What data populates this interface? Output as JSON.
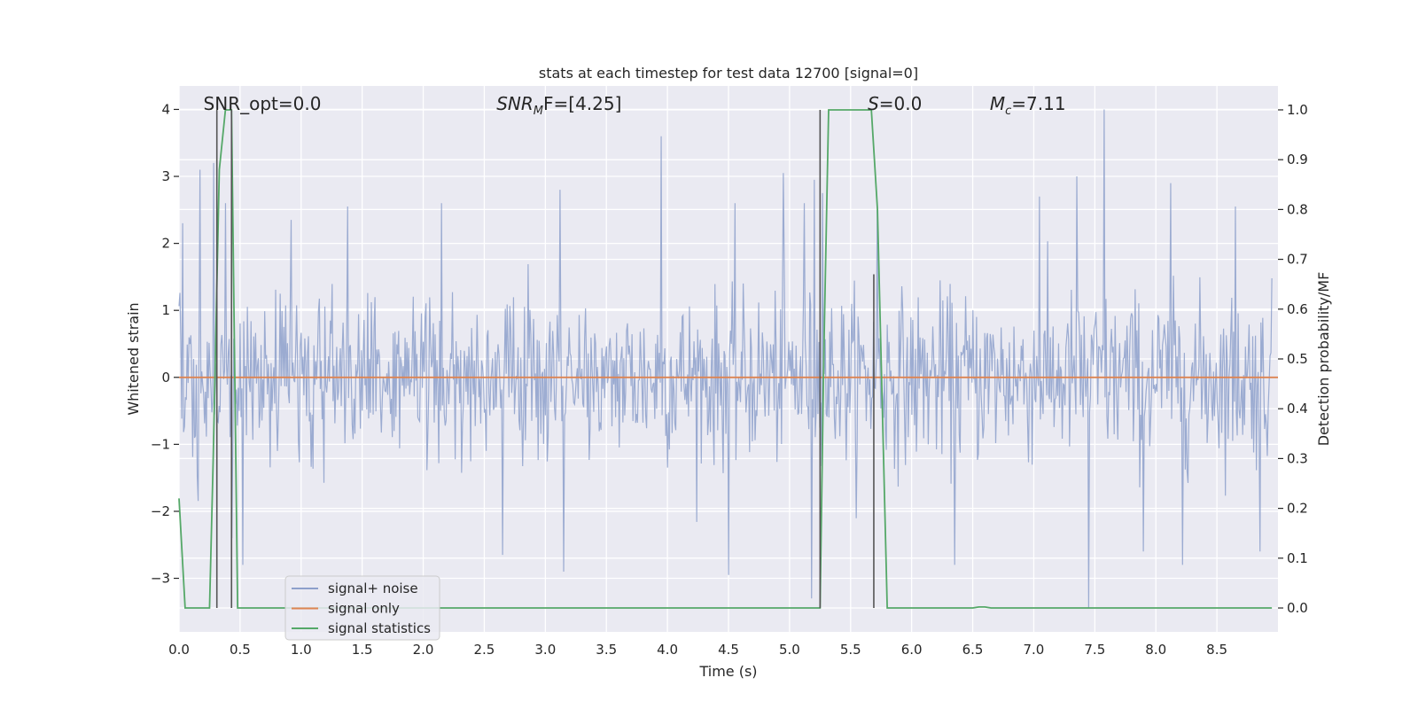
{
  "chart_data": {
    "type": "line",
    "title": "stats at each timestep for test data 12700 [signal=0]",
    "xlabel": "Time (s)",
    "ylabel": "Whitened strain",
    "ylabel_right": "Detection probability/MF",
    "xlim": [
      0.0,
      9.0
    ],
    "ylim": [
      -3.8,
      4.35
    ],
    "ylim_right": [
      -0.048,
      1.048
    ],
    "x_ticks": [
      0.0,
      0.5,
      1.0,
      1.5,
      2.0,
      2.5,
      3.0,
      3.5,
      4.0,
      4.5,
      5.0,
      5.5,
      6.0,
      6.5,
      7.0,
      7.5,
      8.0,
      8.5
    ],
    "x_tick_labels": [
      "0.0",
      "0.5",
      "1.0",
      "1.5",
      "2.0",
      "2.5",
      "3.0",
      "3.5",
      "4.0",
      "4.5",
      "5.0",
      "5.5",
      "6.0",
      "6.5",
      "7.0",
      "7.5",
      "8.0",
      "8.5"
    ],
    "y_ticks": [
      -3,
      -2,
      -1,
      0,
      1,
      2,
      3,
      4
    ],
    "y_tick_labels": [
      "−3",
      "−2",
      "−1",
      "0",
      "1",
      "2",
      "3",
      "4"
    ],
    "y_right_ticks": [
      0.0,
      0.1,
      0.2,
      0.3,
      0.4,
      0.5,
      0.6,
      0.7,
      0.8,
      0.9,
      1.0
    ],
    "y_right_tick_labels": [
      "0.0",
      "0.1",
      "0.2",
      "0.3",
      "0.4",
      "0.5",
      "0.6",
      "0.7",
      "0.8",
      "0.9",
      "1.0"
    ],
    "grid": true,
    "legend_position": "lower-left",
    "annotations": [
      {
        "kind": "plain",
        "text": "SNR_opt=0.0",
        "x": 0.2
      },
      {
        "kind": "sub",
        "base": "SNR",
        "sub": "M",
        "rest": "F=[4.25]",
        "x": 2.6
      },
      {
        "kind": "italic",
        "base": "S",
        "rest": "=0.0",
        "x": 5.64
      },
      {
        "kind": "sub",
        "base": "M",
        "sub": "c",
        "rest": "=7.11",
        "x": 6.64
      }
    ],
    "series": [
      {
        "name": "signal+ noise",
        "color": "#8da0cb",
        "kind": "noise",
        "std": 0.62,
        "min": -3.45,
        "max": 4.0,
        "n_samples": 1200,
        "notable_peaks": [
          {
            "x": 0.03,
            "y": 2.3
          },
          {
            "x": 0.17,
            "y": 3.1
          },
          {
            "x": 0.28,
            "y": 3.2
          },
          {
            "x": 0.38,
            "y": 2.6
          },
          {
            "x": 0.43,
            "y": -2.4
          },
          {
            "x": 0.52,
            "y": -2.8
          },
          {
            "x": 0.92,
            "y": 2.35
          },
          {
            "x": 1.38,
            "y": 2.55
          },
          {
            "x": 2.15,
            "y": 2.6
          },
          {
            "x": 2.65,
            "y": -2.65
          },
          {
            "x": 3.12,
            "y": 2.8
          },
          {
            "x": 3.15,
            "y": -2.9
          },
          {
            "x": 3.95,
            "y": 3.6
          },
          {
            "x": 4.55,
            "y": 2.6
          },
          {
            "x": 4.5,
            "y": -2.95
          },
          {
            "x": 4.95,
            "y": 3.05
          },
          {
            "x": 5.2,
            "y": 2.95
          },
          {
            "x": 5.18,
            "y": -3.3
          },
          {
            "x": 5.27,
            "y": 2.75
          },
          {
            "x": 5.12,
            "y": 2.6
          },
          {
            "x": 5.72,
            "y": 2.5
          },
          {
            "x": 6.35,
            "y": -2.8
          },
          {
            "x": 7.05,
            "y": 2.7
          },
          {
            "x": 7.35,
            "y": 3.0
          },
          {
            "x": 7.45,
            "y": -3.45
          },
          {
            "x": 7.58,
            "y": 4.0
          },
          {
            "x": 8.22,
            "y": -2.8
          },
          {
            "x": 8.12,
            "y": 2.9
          },
          {
            "x": 8.65,
            "y": 2.55
          },
          {
            "x": 8.85,
            "y": -2.6
          },
          {
            "x": 7.9,
            "y": -2.6
          }
        ]
      },
      {
        "name": "signal only",
        "color": "#dd8452",
        "x": [
          0.0,
          9.0
        ],
        "y": [
          0.0,
          0.0
        ]
      },
      {
        "name": "signal statistics",
        "color": "#55a868",
        "axis": "right",
        "x": [
          0.0,
          0.05,
          0.25,
          0.28,
          0.33,
          0.38,
          0.43,
          0.48,
          0.5,
          0.55,
          5.25,
          5.28,
          5.32,
          5.64,
          5.67,
          5.72,
          5.8,
          5.85,
          6.5,
          6.55,
          6.6,
          6.65,
          8.95
        ],
        "y": [
          0.22,
          0.0,
          0.0,
          0.3,
          0.88,
          1.0,
          1.0,
          0.0,
          0.0,
          0.0,
          0.0,
          0.5,
          1.0,
          1.0,
          1.0,
          0.8,
          0.0,
          0.0,
          0.0,
          0.002,
          0.002,
          0.0,
          0.0
        ]
      }
    ],
    "vertical_markers": [
      {
        "x": 0.31,
        "y_top_right": 1.0,
        "color": "#555555"
      },
      {
        "x": 0.43,
        "y_top_right": 1.0,
        "color": "#555555"
      },
      {
        "x": 5.25,
        "y_top_right": 1.0,
        "color": "#555555"
      },
      {
        "x": 5.69,
        "y_top_right": 0.67,
        "color": "#555555"
      }
    ]
  }
}
